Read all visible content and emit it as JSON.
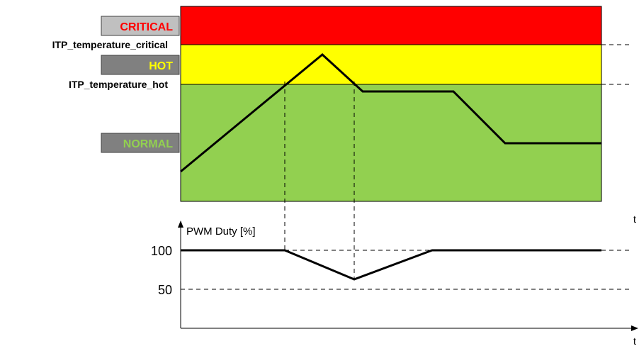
{
  "zones": {
    "critical": {
      "label": "CRITICAL",
      "fill": "#ff0000",
      "label_color": "#ff0000",
      "tag_fill": "#c0c0c0"
    },
    "hot": {
      "label": "HOT",
      "fill": "#ffff00",
      "label_color": "#ffff00",
      "tag_fill": "#808080"
    },
    "normal": {
      "label": "NORMAL",
      "fill": "#92d050",
      "label_color": "#92d050",
      "tag_fill": "#808080"
    }
  },
  "thresholds": {
    "critical": "ITP_temperature_critical",
    "hot": "ITP_temperature_hot"
  },
  "temperature_axis": {
    "t_label": "t"
  },
  "pwm_axis": {
    "ylabel": "PWM Duty [%]",
    "tick_100": "100",
    "tick_50": "50",
    "t_label": "t"
  },
  "colors": {
    "line": "#000000"
  }
}
